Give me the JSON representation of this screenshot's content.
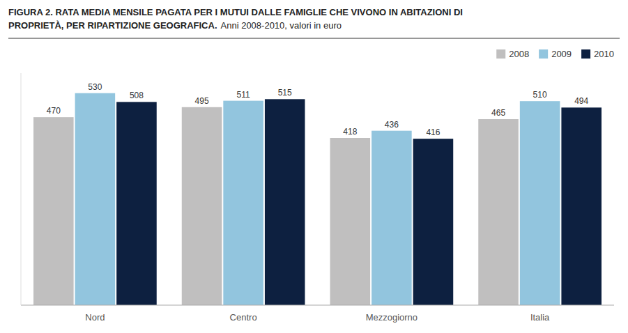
{
  "chart_data": {
    "type": "bar",
    "title": "FIGURA 2. RATA MEDIA MENSILE PAGATA PER I MUTUI DALLE FAMIGLIE CHE VIVONO IN ABITAZIONI DI\nPROPRIETÀ, PER RIPARTIZIONE GEOGRAFICA.",
    "subtitle": "Anni 2008-2010, valori in euro",
    "categories": [
      "Nord",
      "Centro",
      "Mezzogiorno",
      "Italia"
    ],
    "series": [
      {
        "name": "2008",
        "color": "#c0bfbf",
        "values": [
          470,
          495,
          418,
          465
        ]
      },
      {
        "name": "2009",
        "color": "#92c5de",
        "values": [
          530,
          511,
          436,
          510
        ]
      },
      {
        "name": "2010",
        "color": "#0d2040",
        "values": [
          508,
          515,
          416,
          494
        ]
      }
    ],
    "ylim": [
      0,
      580
    ],
    "data_labels": true,
    "tick_labels": "x",
    "legend": "upper right",
    "grid": false
  }
}
